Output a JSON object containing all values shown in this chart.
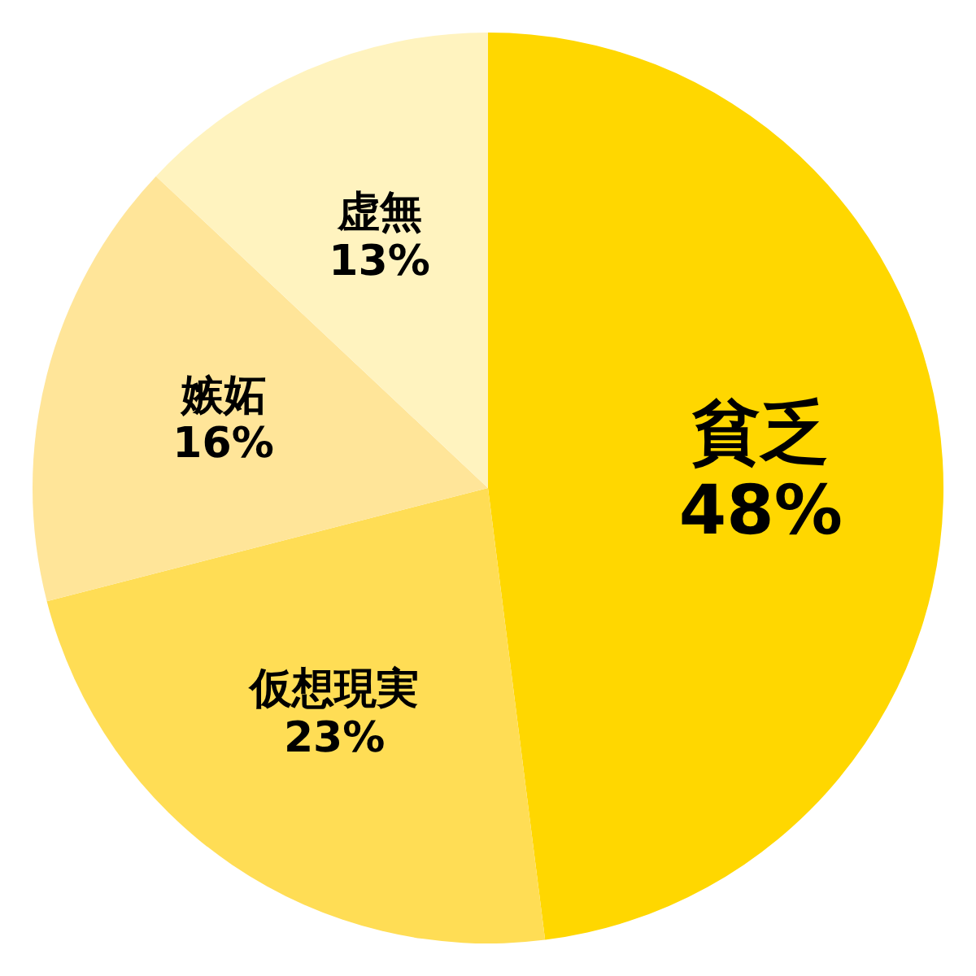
{
  "chart_data": {
    "type": "pie",
    "categories": [
      "貧乏",
      "仮想現実",
      "嫉妬",
      "虚無"
    ],
    "values": [
      48,
      23,
      16,
      13
    ],
    "value_labels": [
      "48%",
      "23%",
      "16%",
      "13%"
    ],
    "colors": [
      "#ffd700",
      "#ffdd55",
      "#ffe599",
      "#fff3bf"
    ]
  }
}
